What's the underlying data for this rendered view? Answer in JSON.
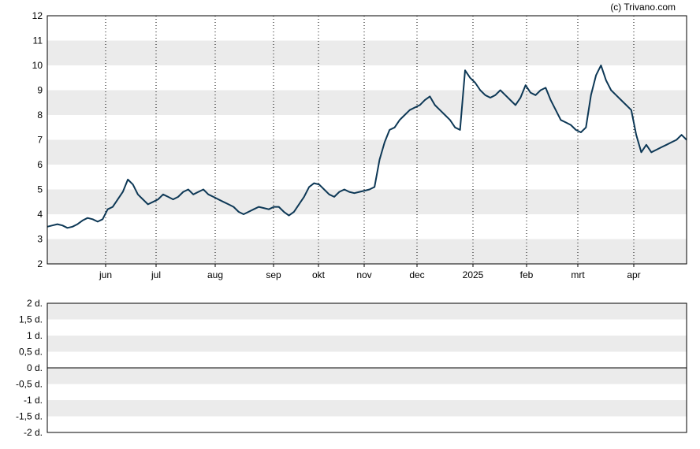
{
  "copyright": "(c) Trivano.com",
  "chart_data": [
    {
      "type": "line",
      "title": "",
      "xlabel": "",
      "ylabel": "",
      "ylim": [
        2,
        12
      ],
      "y_ticks": [
        2,
        3,
        4,
        5,
        6,
        7,
        8,
        9,
        10,
        11,
        12
      ],
      "x_ticks": [
        "jun",
        "jul",
        "aug",
        "sep",
        "okt",
        "nov",
        "dec",
        "2025",
        "feb",
        "mrt",
        "apr"
      ],
      "grid": "horizontal bands alternating gray/white; dotted vertical lines at month ticks",
      "line_color": "#0d3856",
      "series": [
        {
          "values": [
            3.5,
            3.55,
            3.6,
            3.55,
            3.45,
            3.5,
            3.6,
            3.75,
            3.85,
            3.8,
            3.7,
            3.8,
            4.2,
            4.3,
            4.6,
            4.9,
            5.4,
            5.2,
            4.8,
            4.6,
            4.4,
            4.5,
            4.6,
            4.8,
            4.7,
            4.6,
            4.7,
            4.9,
            5.0,
            4.8,
            4.9,
            5.0,
            4.8,
            4.7,
            4.6,
            4.5,
            4.4,
            4.3,
            4.1,
            4.0,
            4.1,
            4.2,
            4.3,
            4.25,
            4.2,
            4.3,
            4.3,
            4.1,
            3.95,
            4.1,
            4.4,
            4.7,
            5.1,
            5.25,
            5.2,
            5.0,
            4.8,
            4.7,
            4.9,
            5.0,
            4.9,
            4.85,
            4.9,
            4.95,
            5.0,
            5.1,
            6.2,
            6.9,
            7.4,
            7.5,
            7.8,
            8.0,
            8.2,
            8.3,
            8.4,
            8.6,
            8.75,
            8.4,
            8.2,
            8.0,
            7.8,
            7.5,
            7.4,
            9.8,
            9.5,
            9.3,
            9.0,
            8.8,
            8.7,
            8.8,
            9.0,
            8.8,
            8.6,
            8.4,
            8.7,
            9.2,
            8.9,
            8.8,
            9.0,
            9.1,
            8.6,
            8.2,
            7.8,
            7.7,
            7.6,
            7.4,
            7.3,
            7.5,
            8.8,
            9.6,
            10.0,
            9.4,
            9.0,
            8.8,
            8.6,
            8.4,
            8.2,
            7.2,
            6.5,
            6.8,
            6.5,
            6.6,
            6.7,
            6.8,
            6.9,
            7.0,
            7.2,
            7.0
          ]
        }
      ]
    },
    {
      "type": "line",
      "title": "",
      "xlabel": "",
      "ylabel": "",
      "ylim": [
        -2,
        2
      ],
      "y_ticks": [
        "2 d.",
        "1,5 d.",
        "1 d.",
        "0,5 d.",
        "0 d.",
        "-0,5 d.",
        "-1 d.",
        "-1,5 d.",
        "-2 d."
      ],
      "grid": "horizontal bands alternating gray/white; solid baseline at 0 d.",
      "series": []
    }
  ]
}
